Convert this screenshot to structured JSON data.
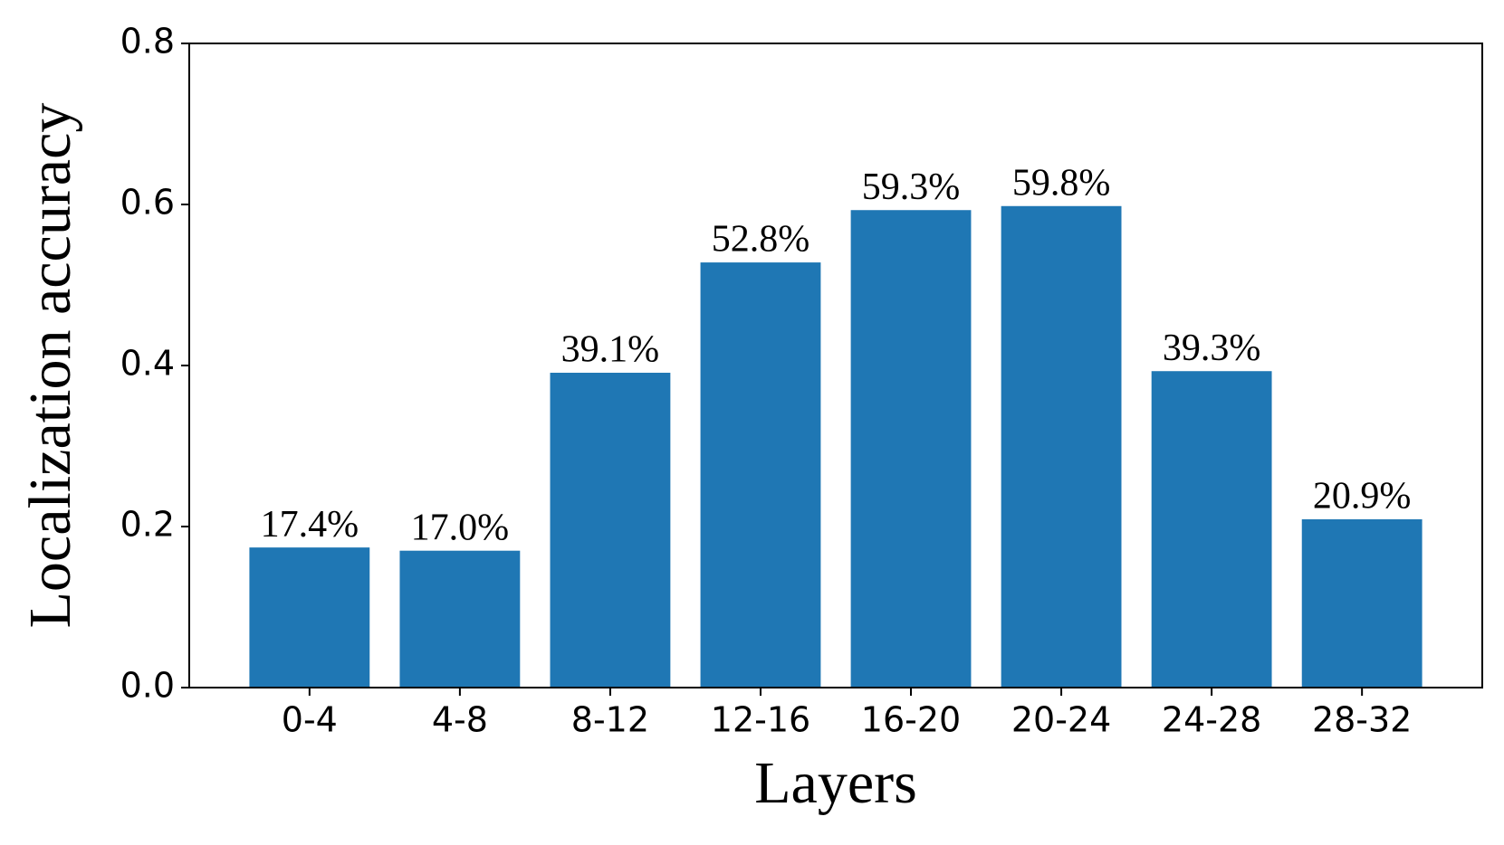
{
  "chart_data": {
    "type": "bar",
    "xlabel": "Layers",
    "ylabel": "Localization accuracy",
    "categories": [
      "0-4",
      "4-8",
      "8-12",
      "12-16",
      "16-20",
      "20-24",
      "24-28",
      "28-32"
    ],
    "values": [
      0.174,
      0.17,
      0.391,
      0.528,
      0.593,
      0.598,
      0.393,
      0.209
    ],
    "value_labels": [
      "17.4%",
      "17.0%",
      "39.1%",
      "52.8%",
      "59.3%",
      "59.8%",
      "39.3%",
      "20.9%"
    ],
    "color": "#1f77b4",
    "ylim": [
      0,
      0.8
    ],
    "yticks": [
      {
        "value": 0,
        "label": "0.0"
      },
      0.2,
      0.4,
      0.6,
      0.8
    ],
    "grid": false
  }
}
